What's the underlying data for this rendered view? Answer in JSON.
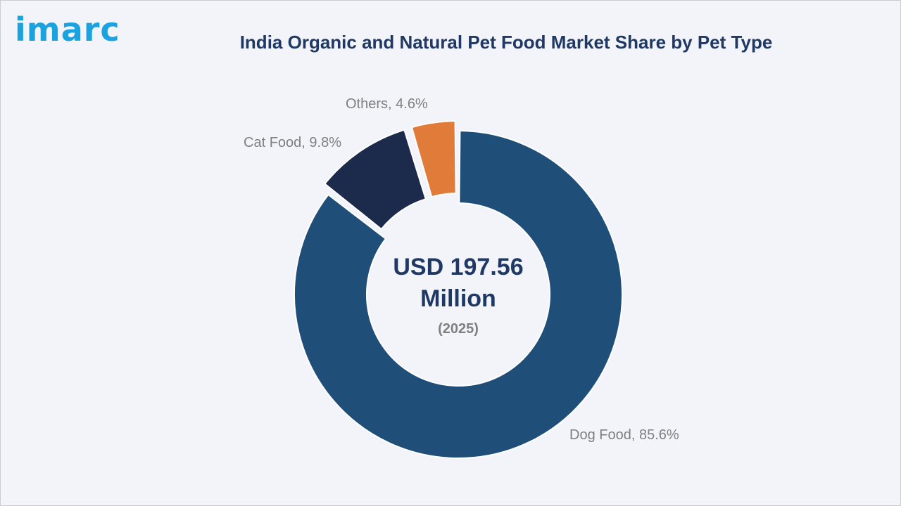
{
  "brand": {
    "logo_text": "imarc",
    "logo_color": "#1aa3df"
  },
  "chart_data": {
    "type": "pie",
    "title": "India Organic and Natural Pet Food Market Share by Pet Type",
    "categories": [
      "Dog Food",
      "Cat Food",
      "Others"
    ],
    "values": [
      85.6,
      9.8,
      4.6
    ],
    "unit": "%",
    "labels": [
      "Dog Food, 85.6%",
      "Cat Food, 9.8%",
      "Others, 4.6%"
    ],
    "colors": [
      "#1f4e79",
      "#1c2b4b",
      "#e07b39"
    ],
    "donut": true,
    "exploded": [
      "Cat Food",
      "Others"
    ],
    "center_text": {
      "line1": "USD 197.56",
      "line2": "Million",
      "line3": "(2025)"
    },
    "legend": "none"
  }
}
